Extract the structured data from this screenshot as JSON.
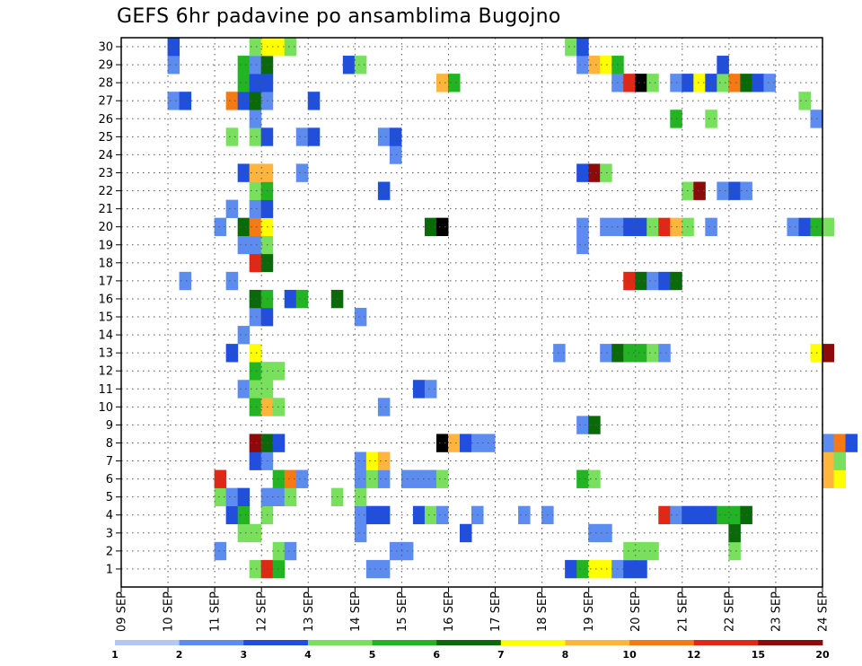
{
  "chart_data": {
    "type": "heatmap",
    "title": "GEFS 6hr padavine po ansamblima Bugojno",
    "ylabel": "",
    "xlabel": "",
    "members": [
      1,
      2,
      3,
      4,
      5,
      6,
      7,
      8,
      9,
      10,
      11,
      12,
      13,
      14,
      15,
      16,
      17,
      18,
      19,
      20,
      21,
      22,
      23,
      24,
      25,
      26,
      27,
      28,
      29,
      30
    ],
    "x_tick_labels": [
      "09 SEP",
      "10 SEP",
      "11 SEP",
      "12 SEP",
      "13 SEP",
      "14 SEP",
      "15 SEP",
      "16 SEP",
      "17 SEP",
      "18 SEP",
      "19 SEP",
      "20 SEP",
      "21 SEP",
      "22 SEP",
      "23 SEP",
      "24 SEP"
    ],
    "x_range_days": [
      9,
      24
    ],
    "steps_per_day": 4,
    "grid": "dotted",
    "colorbar_labels": [
      "1",
      "2",
      "3",
      "4",
      "5",
      "6",
      "7",
      "8",
      "10",
      "12",
      "15",
      "20"
    ],
    "colorbar_colors": [
      "#b3c7f7",
      "#5c8cf0",
      "#1f4fdc",
      "#78e05c",
      "#22b422",
      "#0a6a0a",
      "#ffff00",
      "#ffb43c",
      "#f57a14",
      "#e02814",
      "#8c0a0a"
    ],
    "cells": [
      [
        1,
        11.75,
        3
      ],
      [
        1,
        12.0,
        9
      ],
      [
        1,
        12.25,
        4
      ],
      [
        1,
        14.25,
        1
      ],
      [
        1,
        14.5,
        1
      ],
      [
        1,
        18.5,
        2
      ],
      [
        1,
        18.75,
        4
      ],
      [
        1,
        19.0,
        6
      ],
      [
        1,
        19.25,
        6
      ],
      [
        1,
        19.5,
        1
      ],
      [
        1,
        19.75,
        2
      ],
      [
        1,
        20.0,
        2
      ],
      [
        2,
        11.0,
        1
      ],
      [
        2,
        12.25,
        3
      ],
      [
        2,
        12.5,
        1
      ],
      [
        2,
        14.75,
        1
      ],
      [
        2,
        15.0,
        1
      ],
      [
        2,
        19.75,
        3
      ],
      [
        2,
        20.0,
        3
      ],
      [
        2,
        20.25,
        3
      ],
      [
        2,
        22.0,
        3
      ],
      [
        3,
        11.5,
        3
      ],
      [
        3,
        11.75,
        3
      ],
      [
        3,
        14.0,
        1
      ],
      [
        3,
        16.25,
        2
      ],
      [
        3,
        19.0,
        1
      ],
      [
        3,
        19.25,
        1
      ],
      [
        3,
        22.0,
        5
      ],
      [
        4,
        11.25,
        2
      ],
      [
        4,
        11.5,
        4
      ],
      [
        4,
        12.0,
        3
      ],
      [
        4,
        14.0,
        1
      ],
      [
        4,
        14.25,
        2
      ],
      [
        4,
        14.5,
        2
      ],
      [
        4,
        15.25,
        2
      ],
      [
        4,
        15.5,
        3
      ],
      [
        4,
        15.75,
        1
      ],
      [
        4,
        16.5,
        1
      ],
      [
        4,
        17.5,
        1
      ],
      [
        4,
        18.0,
        1
      ],
      [
        4,
        20.5,
        9
      ],
      [
        4,
        20.75,
        1
      ],
      [
        4,
        21.0,
        2
      ],
      [
        4,
        21.25,
        2
      ],
      [
        4,
        21.5,
        2
      ],
      [
        4,
        21.75,
        4
      ],
      [
        4,
        22.0,
        4
      ],
      [
        4,
        22.25,
        5
      ],
      [
        5,
        11.0,
        3
      ],
      [
        5,
        11.25,
        1
      ],
      [
        5,
        11.5,
        2
      ],
      [
        5,
        12.0,
        1
      ],
      [
        5,
        12.25,
        1
      ],
      [
        5,
        12.5,
        3
      ],
      [
        5,
        13.5,
        3
      ],
      [
        5,
        14.0,
        3
      ],
      [
        6,
        11.0,
        9
      ],
      [
        6,
        12.25,
        4
      ],
      [
        6,
        12.5,
        8
      ],
      [
        6,
        12.75,
        1
      ],
      [
        6,
        14.0,
        1
      ],
      [
        6,
        14.25,
        3
      ],
      [
        6,
        14.5,
        1
      ],
      [
        6,
        15.0,
        1
      ],
      [
        6,
        15.25,
        1
      ],
      [
        6,
        15.5,
        1
      ],
      [
        6,
        15.75,
        3
      ],
      [
        6,
        18.75,
        4
      ],
      [
        6,
        19.0,
        3
      ],
      [
        6,
        24.0,
        7
      ],
      [
        6,
        24.25,
        6
      ],
      [
        7,
        11.75,
        2
      ],
      [
        7,
        12.0,
        1
      ],
      [
        7,
        14.0,
        1
      ],
      [
        7,
        14.25,
        6
      ],
      [
        7,
        14.5,
        7
      ],
      [
        7,
        24.0,
        7
      ],
      [
        7,
        24.25,
        3
      ],
      [
        8,
        11.75,
        10
      ],
      [
        8,
        12.0,
        5
      ],
      [
        8,
        12.25,
        2
      ],
      [
        8,
        15.75,
        11
      ],
      [
        8,
        16.0,
        7
      ],
      [
        8,
        16.25,
        2
      ],
      [
        8,
        16.5,
        1
      ],
      [
        8,
        16.75,
        1
      ],
      [
        8,
        24.0,
        1
      ],
      [
        8,
        24.25,
        8
      ],
      [
        8,
        24.5,
        2
      ],
      [
        9,
        18.75,
        1
      ],
      [
        9,
        19.0,
        5
      ],
      [
        10,
        11.75,
        4
      ],
      [
        10,
        12.0,
        7
      ],
      [
        10,
        12.25,
        3
      ],
      [
        10,
        14.5,
        1
      ],
      [
        11,
        11.5,
        1
      ],
      [
        11,
        11.75,
        3
      ],
      [
        11,
        12.0,
        3
      ],
      [
        11,
        15.25,
        2
      ],
      [
        11,
        15.5,
        1
      ],
      [
        12,
        11.75,
        4
      ],
      [
        12,
        12.0,
        3
      ],
      [
        12,
        12.25,
        3
      ],
      [
        13,
        11.25,
        2
      ],
      [
        13,
        11.75,
        6
      ],
      [
        13,
        18.25,
        1
      ],
      [
        13,
        19.25,
        1
      ],
      [
        13,
        19.5,
        5
      ],
      [
        13,
        19.75,
        4
      ],
      [
        13,
        20.0,
        4
      ],
      [
        13,
        20.25,
        3
      ],
      [
        13,
        20.5,
        1
      ],
      [
        13,
        23.75,
        6
      ],
      [
        13,
        24.0,
        10
      ],
      [
        14,
        11.5,
        1
      ],
      [
        15,
        11.75,
        1
      ],
      [
        15,
        12.0,
        2
      ],
      [
        15,
        14.0,
        1
      ],
      [
        16,
        11.75,
        5
      ],
      [
        16,
        12.0,
        4
      ],
      [
        16,
        12.5,
        2
      ],
      [
        16,
        12.75,
        4
      ],
      [
        16,
        13.5,
        5
      ],
      [
        17,
        10.25,
        1
      ],
      [
        17,
        11.25,
        1
      ],
      [
        17,
        19.75,
        9
      ],
      [
        17,
        20.0,
        5
      ],
      [
        17,
        20.25,
        1
      ],
      [
        17,
        20.5,
        2
      ],
      [
        17,
        20.75,
        5
      ],
      [
        18,
        11.75,
        9
      ],
      [
        18,
        12.0,
        5
      ],
      [
        19,
        11.5,
        1
      ],
      [
        19,
        11.75,
        1
      ],
      [
        19,
        12.0,
        3
      ],
      [
        19,
        18.75,
        1
      ],
      [
        20,
        11.0,
        1
      ],
      [
        20,
        11.5,
        5
      ],
      [
        20,
        11.75,
        8
      ],
      [
        20,
        12.0,
        6
      ],
      [
        20,
        15.5,
        5
      ],
      [
        20,
        15.75,
        11
      ],
      [
        20,
        18.75,
        1
      ],
      [
        20,
        19.25,
        1
      ],
      [
        20,
        19.5,
        1
      ],
      [
        20,
        19.75,
        2
      ],
      [
        20,
        20.0,
        2
      ],
      [
        20,
        20.25,
        3
      ],
      [
        20,
        20.5,
        9
      ],
      [
        20,
        20.75,
        7
      ],
      [
        20,
        21.0,
        3
      ],
      [
        20,
        21.5,
        1
      ],
      [
        20,
        23.25,
        1
      ],
      [
        20,
        23.5,
        2
      ],
      [
        20,
        23.75,
        4
      ],
      [
        20,
        24.0,
        3
      ],
      [
        21,
        11.25,
        1
      ],
      [
        21,
        11.75,
        1
      ],
      [
        21,
        12.0,
        2
      ],
      [
        22,
        11.75,
        3
      ],
      [
        22,
        12.0,
        4
      ],
      [
        22,
        14.5,
        2
      ],
      [
        22,
        21.0,
        3
      ],
      [
        22,
        21.25,
        10
      ],
      [
        22,
        21.75,
        1
      ],
      [
        22,
        22.0,
        2
      ],
      [
        22,
        22.25,
        1
      ],
      [
        23,
        11.5,
        2
      ],
      [
        23,
        11.75,
        7
      ],
      [
        23,
        12.0,
        7
      ],
      [
        23,
        12.75,
        1
      ],
      [
        23,
        18.75,
        2
      ],
      [
        23,
        19.0,
        10
      ],
      [
        23,
        19.25,
        3
      ],
      [
        24,
        14.75,
        1
      ],
      [
        25,
        11.25,
        3
      ],
      [
        25,
        11.75,
        3
      ],
      [
        25,
        12.0,
        2
      ],
      [
        25,
        12.75,
        1
      ],
      [
        25,
        13.0,
        2
      ],
      [
        25,
        14.5,
        1
      ],
      [
        25,
        14.75,
        2
      ],
      [
        26,
        11.75,
        1
      ],
      [
        26,
        20.75,
        4
      ],
      [
        26,
        21.5,
        3
      ],
      [
        26,
        23.75,
        1
      ],
      [
        27,
        10.0,
        1
      ],
      [
        27,
        10.25,
        2
      ],
      [
        27,
        11.25,
        8
      ],
      [
        27,
        11.5,
        2
      ],
      [
        27,
        11.75,
        5
      ],
      [
        27,
        12.0,
        1
      ],
      [
        27,
        13.0,
        2
      ],
      [
        27,
        23.5,
        3
      ],
      [
        28,
        11.5,
        4
      ],
      [
        28,
        11.75,
        2
      ],
      [
        28,
        12.0,
        2
      ],
      [
        28,
        15.75,
        7
      ],
      [
        28,
        16.0,
        4
      ],
      [
        28,
        19.5,
        1
      ],
      [
        28,
        19.75,
        9
      ],
      [
        28,
        20.0,
        11
      ],
      [
        28,
        20.25,
        3
      ],
      [
        28,
        20.75,
        1
      ],
      [
        28,
        21.0,
        2
      ],
      [
        28,
        21.25,
        6
      ],
      [
        28,
        21.5,
        2
      ],
      [
        28,
        21.75,
        3
      ],
      [
        28,
        22.0,
        8
      ],
      [
        28,
        22.25,
        5
      ],
      [
        28,
        22.5,
        2
      ],
      [
        28,
        22.75,
        1
      ],
      [
        29,
        10.0,
        1
      ],
      [
        29,
        11.5,
        4
      ],
      [
        29,
        11.75,
        1
      ],
      [
        29,
        12.0,
        5
      ],
      [
        29,
        13.75,
        2
      ],
      [
        29,
        14.0,
        3
      ],
      [
        29,
        18.75,
        1
      ],
      [
        29,
        19.0,
        7
      ],
      [
        29,
        19.25,
        6
      ],
      [
        29,
        19.5,
        4
      ],
      [
        29,
        21.75,
        2
      ],
      [
        30,
        10.0,
        2
      ],
      [
        30,
        11.75,
        3
      ],
      [
        30,
        12.0,
        6
      ],
      [
        30,
        12.25,
        6
      ],
      [
        30,
        12.5,
        3
      ],
      [
        30,
        18.5,
        3
      ],
      [
        30,
        18.75,
        2
      ]
    ]
  }
}
